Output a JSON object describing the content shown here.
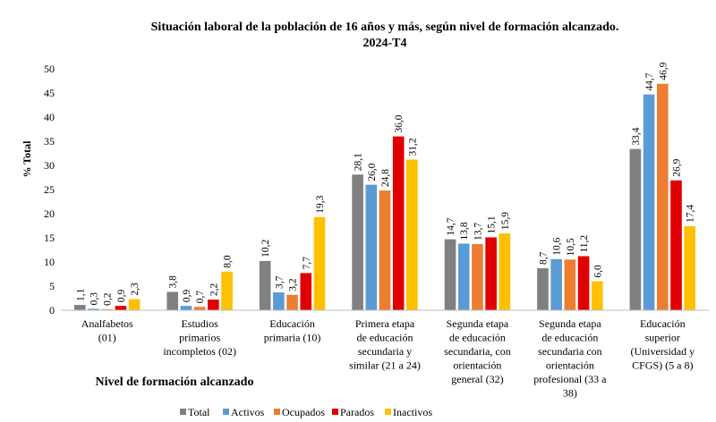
{
  "chart_data": {
    "type": "bar",
    "title_line1": "Situación laboral de la población de 16 años y más, según nivel de formación alcanzado.",
    "title_line2": "2024-T4",
    "ylabel": "% Total",
    "xlabel": "Nivel de formación alcanzado",
    "ylim": [
      0,
      50
    ],
    "yticks": [
      "0",
      "5",
      "10",
      "15",
      "20",
      "25",
      "30",
      "35",
      "40",
      "45",
      "50"
    ],
    "grid": false,
    "legend_position": "bottom",
    "categories": [
      [
        "Analfabetos",
        "(01)"
      ],
      [
        "Estudios",
        "primarios",
        "incompletos (02)"
      ],
      [
        "Educación",
        "primaria (10)"
      ],
      [
        "Primera etapa",
        "de educación",
        "secundaria y",
        "similar (21 a 24)"
      ],
      [
        "Segunda etapa",
        "de educación",
        "secundaria, con",
        "orientación",
        "general (32)"
      ],
      [
        "Segunda etapa",
        "de educación",
        "secundaria con",
        "orientación",
        "profesional (33 a",
        "38)"
      ],
      [
        "Educación",
        "superior",
        "(Universidad y",
        "CFGS) (5 a 8)"
      ]
    ],
    "series": [
      {
        "name": "Total",
        "color": "#808080",
        "values": [
          1.1,
          3.8,
          10.2,
          28.1,
          14.7,
          8.7,
          33.4
        ],
        "labels": [
          "1,1",
          "3,8",
          "10,2",
          "28,1",
          "14,7",
          "8,7",
          "33,4"
        ]
      },
      {
        "name": "Activos",
        "color": "#5b9bd5",
        "values": [
          0.3,
          0.9,
          3.7,
          26.0,
          13.8,
          10.6,
          44.7
        ],
        "labels": [
          "0,3",
          "0,9",
          "3,7",
          "26,0",
          "13,8",
          "10,6",
          "44,7"
        ]
      },
      {
        "name": "Ocupados",
        "color": "#ed7d31",
        "values": [
          0.2,
          0.7,
          3.2,
          24.8,
          13.7,
          10.5,
          46.9
        ],
        "labels": [
          "0,2",
          "0,7",
          "3,2",
          "24,8",
          "13,7",
          "10,5",
          "46,9"
        ]
      },
      {
        "name": "Parados",
        "color": "#e00000",
        "values": [
          0.9,
          2.2,
          7.7,
          36.0,
          15.1,
          11.2,
          26.9
        ],
        "labels": [
          "0,9",
          "2,2",
          "7,7",
          "36,0",
          "15,1",
          "11,2",
          "26,9"
        ]
      },
      {
        "name": "Inactivos",
        "color": "#ffc000",
        "values": [
          2.3,
          8.0,
          19.3,
          31.2,
          15.9,
          6.0,
          17.4
        ],
        "labels": [
          "2,3",
          "8,0",
          "19,3",
          "31,2",
          "15,9",
          "6,0",
          "17,4"
        ]
      }
    ]
  }
}
